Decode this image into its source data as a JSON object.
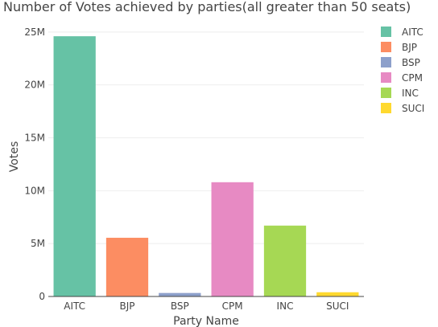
{
  "chart_data": {
    "type": "bar",
    "title": "Number of Votes achieved by parties(all greater than 50 seats)",
    "xlabel": "Party Name",
    "ylabel": "Votes",
    "categories": [
      "AITC",
      "BJP",
      "BSP",
      "CPM",
      "INC",
      "SUCI"
    ],
    "values": [
      24600000,
      5550000,
      330000,
      10800000,
      6700000,
      400000
    ],
    "colors": [
      "#66c2a5",
      "#fc8d62",
      "#8da0cb",
      "#e78ac3",
      "#a6d854",
      "#ffd92f"
    ],
    "ylim": [
      0,
      25900000
    ],
    "yticks": [
      0,
      5000000,
      10000000,
      15000000,
      20000000,
      25000000
    ],
    "ytick_labels": [
      "0",
      "5M",
      "10M",
      "15M",
      "20M",
      "25M"
    ],
    "grid": true,
    "legend": {
      "placement": "top-right",
      "entries": [
        "AITC",
        "BJP",
        "BSP",
        "CPM",
        "INC",
        "SUCI"
      ]
    }
  }
}
